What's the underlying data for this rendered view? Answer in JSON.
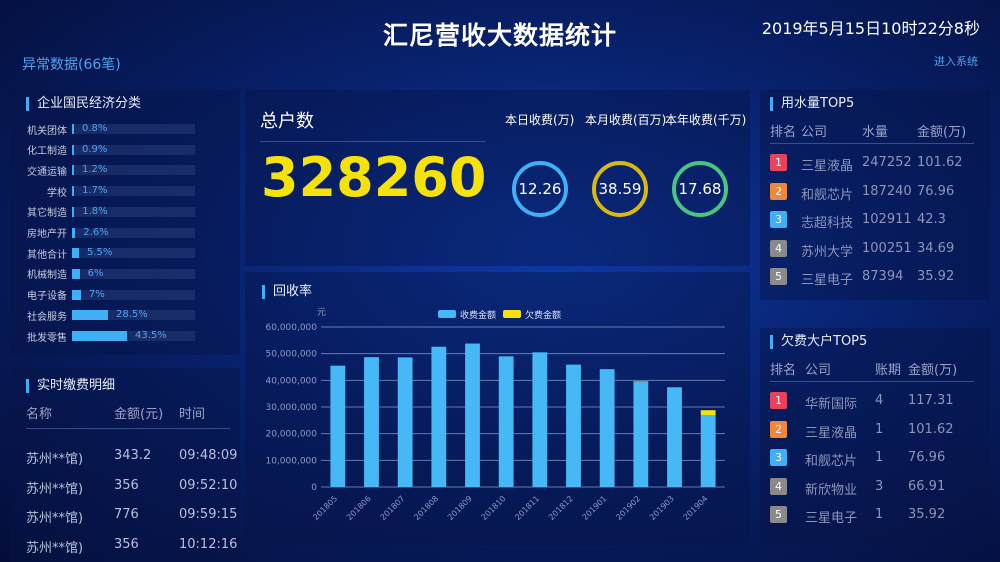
{
  "header": {
    "title": "汇尼营收大数据统计",
    "datetime": "2019年5月15日10时22分8秒",
    "abnormal": "异常数据(66笔)",
    "enter": "进入系统"
  },
  "industry": {
    "title": "企业国民经济分类",
    "items": [
      {
        "label": "机关团体",
        "value": "0.8%",
        "pct": 0.8
      },
      {
        "label": "化工制造",
        "value": "0.9%",
        "pct": 0.9
      },
      {
        "label": "交通运输",
        "value": "1.2%",
        "pct": 1.2
      },
      {
        "label": "学校",
        "value": "1.7%",
        "pct": 1.7
      },
      {
        "label": "其它制造",
        "value": "1.8%",
        "pct": 1.8
      },
      {
        "label": "房地产开",
        "value": "2.6%",
        "pct": 2.6
      },
      {
        "label": "其他合计",
        "value": "5.5%",
        "pct": 5.5
      },
      {
        "label": "机械制造",
        "value": "6%",
        "pct": 6
      },
      {
        "label": "电子设备",
        "value": "7%",
        "pct": 7
      },
      {
        "label": "社会服务",
        "value": "28.5%",
        "pct": 28.5
      },
      {
        "label": "批发零售",
        "value": "43.5%",
        "pct": 43.5
      }
    ]
  },
  "payments": {
    "title": "实时缴费明细",
    "columns": [
      "名称",
      "金额(元)",
      "时间"
    ],
    "rows": [
      [
        "苏州**馆)",
        "343.2",
        "09:48:09"
      ],
      [
        "苏州**馆)",
        "356",
        "09:52:10"
      ],
      [
        "苏州**馆)",
        "776",
        "09:59:15"
      ],
      [
        "苏州**馆)",
        "356",
        "10:12:16"
      ]
    ]
  },
  "summary": {
    "total_label": "总户数",
    "total": "328260",
    "stats": [
      {
        "label": "本日收费(万)",
        "value": "12.26",
        "color": "#3fb0f5"
      },
      {
        "label": "本月收费(百万)",
        "value": "38.59",
        "color": "#d9b80f"
      },
      {
        "label": "本年收费(千万)",
        "value": "17.68",
        "color": "#49c67d"
      }
    ]
  },
  "recovery": {
    "title": "回收率"
  },
  "chart_data": {
    "type": "bar",
    "stacked": true,
    "ylabel": "元",
    "ylim": [
      0,
      60000000
    ],
    "yticks": [
      "0",
      "10,000,000",
      "20,000,000",
      "30,000,000",
      "40,000,000",
      "50,000,000",
      "60,000,000"
    ],
    "categories": [
      "201805",
      "201806",
      "201807",
      "201808",
      "201809",
      "201810",
      "201811",
      "201812",
      "201901",
      "201902",
      "201903",
      "201904"
    ],
    "series": [
      {
        "name": "收费金额",
        "color": "#45b8f5",
        "values": [
          45500000,
          48700000,
          48600000,
          52600000,
          53800000,
          49000000,
          50500000,
          45900000,
          44200000,
          39300000,
          37400000,
          27000000
        ]
      },
      {
        "name": "欠费金额",
        "color": "#f5e20a",
        "values": [
          0,
          0,
          0,
          0,
          0,
          0,
          0,
          0,
          0,
          300000,
          0,
          1800000
        ]
      }
    ],
    "legend": "top-center",
    "grid": true
  },
  "water_top5": {
    "title": "用水量TOP5",
    "columns": [
      "排名",
      "公司",
      "水量",
      "金额(万)"
    ],
    "rows": [
      [
        "1",
        "三星液晶",
        "247252",
        "101.62"
      ],
      [
        "2",
        "和舰芯片",
        "187240",
        "76.96"
      ],
      [
        "3",
        "志超科技",
        "102911",
        "42.3"
      ],
      [
        "4",
        "苏州大学",
        "100251",
        "34.69"
      ],
      [
        "5",
        "三星电子",
        "87394",
        "35.92"
      ]
    ]
  },
  "arrears_top5": {
    "title": "欠费大户TOP5",
    "columns": [
      "排名",
      "公司",
      "账期",
      "金额(万)"
    ],
    "rows": [
      [
        "1",
        "华新国际",
        "4",
        "117.31"
      ],
      [
        "2",
        "三星液晶",
        "1",
        "101.62"
      ],
      [
        "3",
        "和舰芯片",
        "1",
        "76.96"
      ],
      [
        "4",
        "新欣物业",
        "3",
        "66.91"
      ],
      [
        "5",
        "三星电子",
        "1",
        "35.92"
      ]
    ]
  },
  "rank_colors": [
    "#e8435a",
    "#f0873a",
    "#3fb0f5",
    "#8a8a8a",
    "#8a8a8a"
  ]
}
